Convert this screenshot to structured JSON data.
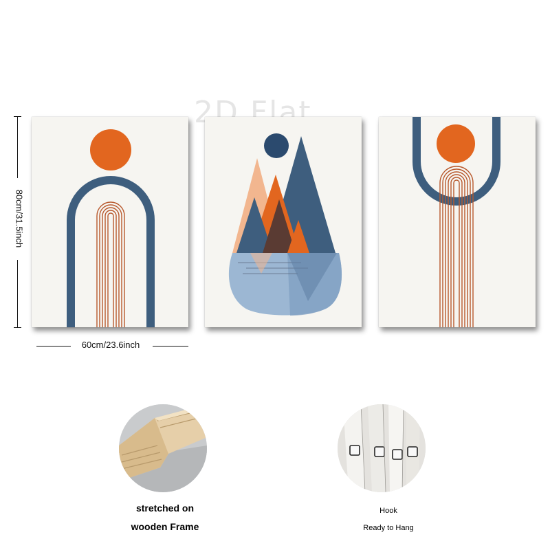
{
  "watermark": "2D Flat",
  "dimensions": {
    "height_label": "80cm/31.5inch",
    "width_label": "60cm/23.6inch"
  },
  "features": [
    {
      "lines": [
        "stretched on",
        "wooden Frame"
      ],
      "icon": "wooden-frame-photo"
    },
    {
      "lines": [
        "Hook",
        "Ready to Hang"
      ],
      "icon": "hook-photo"
    }
  ],
  "colors": {
    "canvas": "#f6f5f1",
    "navy": "#3e5e7e",
    "orange": "#e2661f",
    "rust": "#b8582c",
    "light_blue": "#9cb7d3",
    "peach": "#f2b68f"
  }
}
